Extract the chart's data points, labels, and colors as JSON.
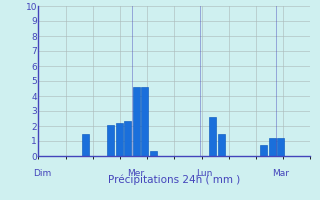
{
  "xlabel": "Précipitations 24h ( mm )",
  "ylim": [
    0,
    10
  ],
  "yticks": [
    0,
    1,
    2,
    3,
    4,
    5,
    6,
    7,
    8,
    9,
    10
  ],
  "background_color": "#cff0f0",
  "bar_color": "#1a6fdb",
  "bar_edge_color": "#0050bb",
  "grid_color": "#aab8b8",
  "text_color": "#4444bb",
  "bars": [
    {
      "x": 5,
      "height": 1.5
    },
    {
      "x": 8,
      "height": 2.1
    },
    {
      "x": 9,
      "height": 2.2
    },
    {
      "x": 10,
      "height": 2.35
    },
    {
      "x": 11,
      "height": 4.6
    },
    {
      "x": 12,
      "height": 4.6
    },
    {
      "x": 13,
      "height": 0.35
    },
    {
      "x": 20,
      "height": 2.6
    },
    {
      "x": 21,
      "height": 1.5
    },
    {
      "x": 26,
      "height": 0.75
    },
    {
      "x": 27,
      "height": 1.2
    },
    {
      "x": 28,
      "height": 1.2
    }
  ],
  "xtick_labels_data": [
    {
      "label": "Dim",
      "x": 0
    },
    {
      "label": "Mer",
      "x": 11
    },
    {
      "label": "Lun",
      "x": 19
    },
    {
      "label": "Mar",
      "x": 28
    }
  ],
  "day_vlines": [
    0,
    11,
    19,
    28
  ],
  "total_bars": 32,
  "xlim": [
    -0.5,
    31.5
  ]
}
